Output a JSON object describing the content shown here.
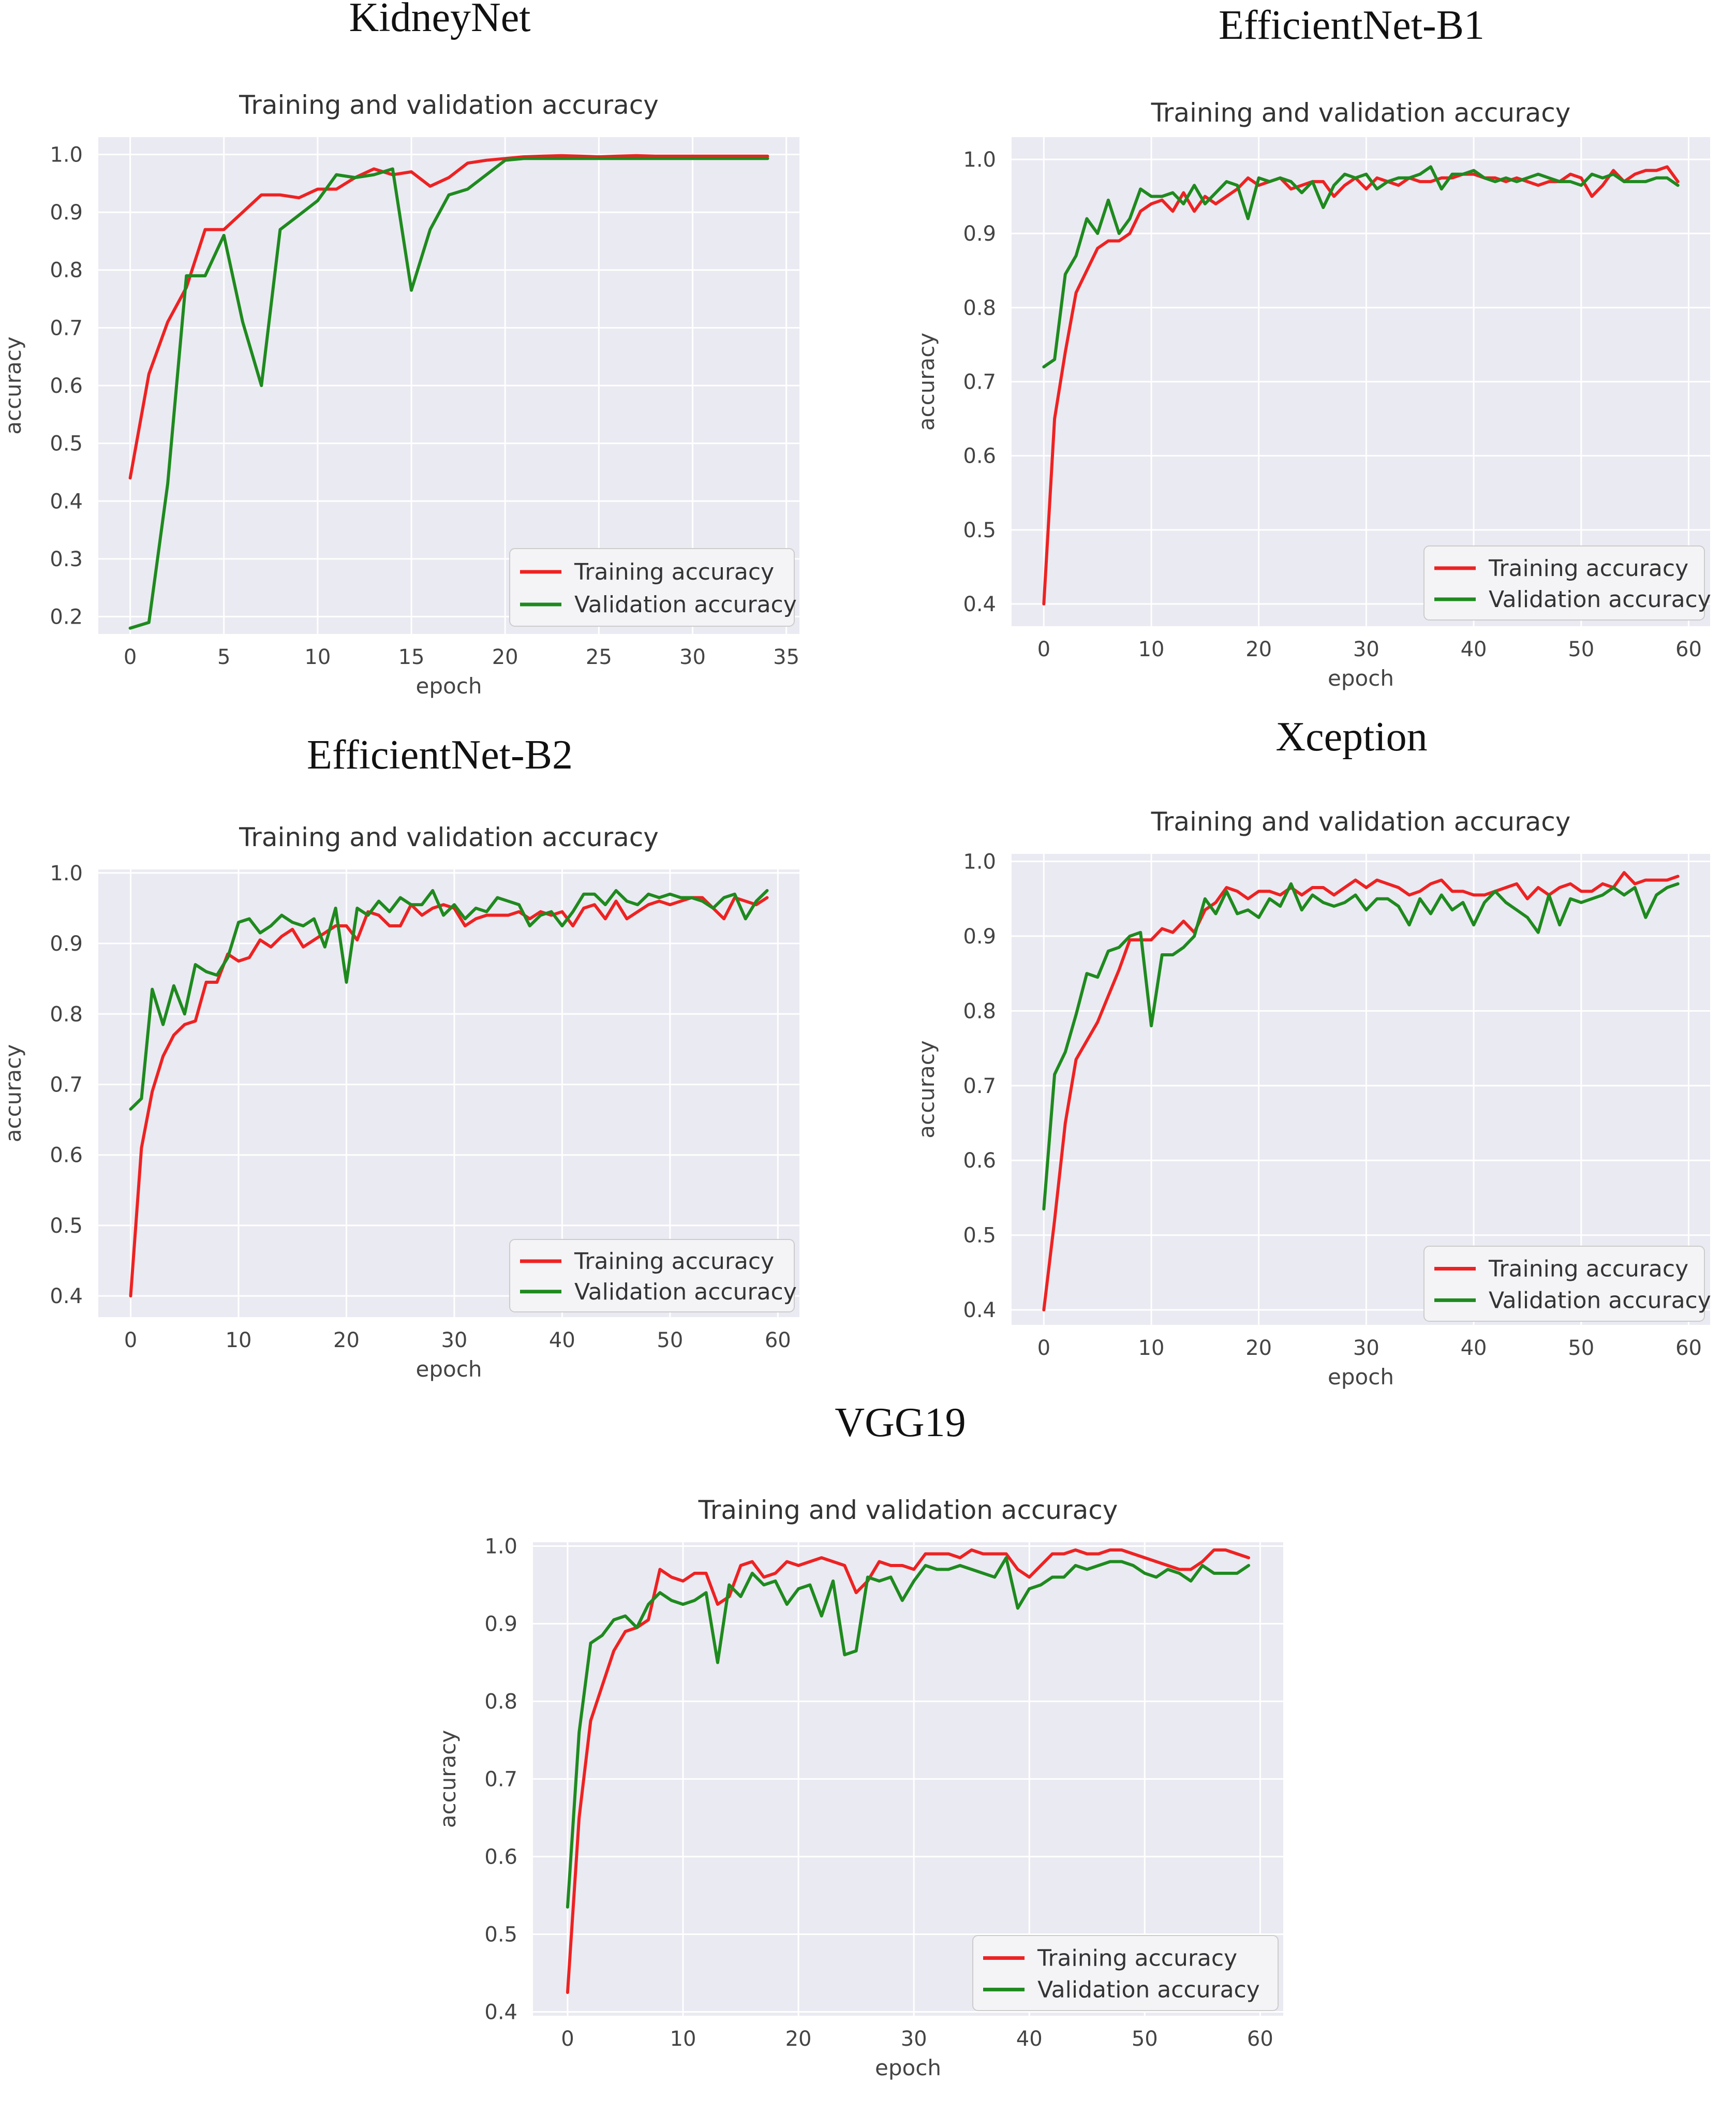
{
  "figure": {
    "background": "#ffffff"
  },
  "colors": {
    "training": "#ee2222",
    "validation": "#1e8a1e",
    "plot_bg": "#eaeaf2"
  },
  "chart_data": [
    {
      "type": "line",
      "model_name": "KidneyNet",
      "title": "Training and validation accuracy",
      "xlabel": "epoch",
      "ylabel": "accuracy",
      "xlim": [
        -1.7,
        35.7
      ],
      "ylim": [
        0.17,
        1.03
      ],
      "xticks": [
        0,
        5,
        10,
        15,
        20,
        25,
        30,
        35
      ],
      "yticks": [
        0.2,
        0.3,
        0.4,
        0.5,
        0.6,
        0.7,
        0.8,
        0.9,
        1.0
      ],
      "ytick_labels": [
        "0.2",
        "0.3",
        "0.4",
        "0.5",
        "0.6",
        "0.7",
        "0.8",
        "0.9",
        "1.0"
      ],
      "legend_position": "bottom-right",
      "series": [
        {
          "name": "Training accuracy",
          "color": "#ee2222",
          "values": [
            0.44,
            0.62,
            0.71,
            0.77,
            0.87,
            0.87,
            0.9,
            0.93,
            0.93,
            0.925,
            0.94,
            0.94,
            0.96,
            0.975,
            0.965,
            0.97,
            0.945,
            0.96,
            0.985,
            0.99,
            0.993,
            0.996,
            0.997,
            0.998,
            0.997,
            0.996,
            0.997,
            0.998,
            0.997,
            0.997,
            0.997,
            0.997,
            0.997,
            0.997,
            0.997
          ]
        },
        {
          "name": "Validation accuracy",
          "color": "#1e8a1e",
          "values": [
            0.18,
            0.19,
            0.43,
            0.79,
            0.79,
            0.86,
            0.71,
            0.6,
            0.87,
            0.895,
            0.92,
            0.965,
            0.96,
            0.965,
            0.975,
            0.765,
            0.87,
            0.93,
            0.94,
            0.965,
            0.99,
            0.993,
            0.993,
            0.993,
            0.993,
            0.993,
            0.993,
            0.993,
            0.993,
            0.993,
            0.993,
            0.993,
            0.993,
            0.993,
            0.993
          ]
        }
      ]
    },
    {
      "type": "line",
      "model_name": "EfficientNet-B1",
      "title": "Training and validation accuracy",
      "xlabel": "epoch",
      "ylabel": "accuracy",
      "xlim": [
        -3,
        62
      ],
      "ylim": [
        0.37,
        1.03
      ],
      "xticks": [
        0,
        10,
        20,
        30,
        40,
        50,
        60
      ],
      "yticks": [
        0.4,
        0.5,
        0.6,
        0.7,
        0.8,
        0.9,
        1.0
      ],
      "ytick_labels": [
        "0.4",
        "0.5",
        "0.6",
        "0.7",
        "0.8",
        "0.9",
        "1.0"
      ],
      "legend_position": "bottom-right",
      "series": [
        {
          "name": "Training accuracy",
          "color": "#ee2222",
          "values": [
            0.4,
            0.65,
            0.74,
            0.82,
            0.85,
            0.88,
            0.89,
            0.89,
            0.9,
            0.93,
            0.94,
            0.945,
            0.93,
            0.955,
            0.93,
            0.95,
            0.94,
            0.95,
            0.96,
            0.975,
            0.965,
            0.97,
            0.975,
            0.96,
            0.965,
            0.97,
            0.97,
            0.95,
            0.965,
            0.975,
            0.96,
            0.975,
            0.97,
            0.965,
            0.975,
            0.97,
            0.97,
            0.975,
            0.975,
            0.98,
            0.98,
            0.975,
            0.975,
            0.97,
            0.975,
            0.97,
            0.965,
            0.97,
            0.97,
            0.98,
            0.975,
            0.95,
            0.965,
            0.985,
            0.97,
            0.98,
            0.985,
            0.985,
            0.99,
            0.97
          ]
        },
        {
          "name": "Validation accuracy",
          "color": "#1e8a1e",
          "values": [
            0.72,
            0.73,
            0.845,
            0.87,
            0.92,
            0.9,
            0.945,
            0.9,
            0.92,
            0.96,
            0.95,
            0.95,
            0.955,
            0.94,
            0.965,
            0.94,
            0.955,
            0.97,
            0.965,
            0.92,
            0.975,
            0.97,
            0.975,
            0.97,
            0.955,
            0.97,
            0.935,
            0.965,
            0.98,
            0.975,
            0.98,
            0.96,
            0.97,
            0.975,
            0.975,
            0.98,
            0.99,
            0.96,
            0.98,
            0.98,
            0.985,
            0.975,
            0.97,
            0.975,
            0.97,
            0.975,
            0.98,
            0.975,
            0.97,
            0.97,
            0.965,
            0.98,
            0.975,
            0.98,
            0.97,
            0.97,
            0.97,
            0.975,
            0.975,
            0.965
          ]
        }
      ]
    },
    {
      "type": "line",
      "model_name": "EfficientNet-B2",
      "title": "Training and validation accuracy",
      "xlabel": "epoch",
      "ylabel": "accuracy",
      "xlim": [
        -3,
        62
      ],
      "ylim": [
        0.37,
        1.005
      ],
      "xticks": [
        0,
        10,
        20,
        30,
        40,
        50,
        60
      ],
      "yticks": [
        0.4,
        0.5,
        0.6,
        0.7,
        0.8,
        0.9,
        1.0
      ],
      "ytick_labels": [
        "0.4",
        "0.5",
        "0.6",
        "0.7",
        "0.8",
        "0.9",
        "1.0"
      ],
      "legend_position": "bottom-right",
      "series": [
        {
          "name": "Training accuracy",
          "color": "#ee2222",
          "values": [
            0.4,
            0.61,
            0.69,
            0.74,
            0.77,
            0.785,
            0.79,
            0.845,
            0.845,
            0.885,
            0.875,
            0.88,
            0.905,
            0.895,
            0.91,
            0.92,
            0.895,
            0.905,
            0.915,
            0.925,
            0.925,
            0.905,
            0.945,
            0.94,
            0.925,
            0.925,
            0.955,
            0.94,
            0.95,
            0.955,
            0.95,
            0.925,
            0.935,
            0.94,
            0.94,
            0.94,
            0.945,
            0.935,
            0.945,
            0.94,
            0.945,
            0.925,
            0.95,
            0.955,
            0.935,
            0.96,
            0.935,
            0.945,
            0.955,
            0.96,
            0.955,
            0.96,
            0.965,
            0.965,
            0.95,
            0.935,
            0.965,
            0.96,
            0.955,
            0.965
          ]
        },
        {
          "name": "Validation accuracy",
          "color": "#1e8a1e",
          "values": [
            0.665,
            0.68,
            0.835,
            0.785,
            0.84,
            0.8,
            0.87,
            0.86,
            0.855,
            0.88,
            0.93,
            0.935,
            0.915,
            0.925,
            0.94,
            0.93,
            0.925,
            0.935,
            0.895,
            0.95,
            0.845,
            0.95,
            0.94,
            0.96,
            0.945,
            0.965,
            0.955,
            0.955,
            0.975,
            0.94,
            0.955,
            0.935,
            0.95,
            0.945,
            0.965,
            0.96,
            0.955,
            0.925,
            0.94,
            0.945,
            0.925,
            0.945,
            0.97,
            0.97,
            0.955,
            0.975,
            0.96,
            0.955,
            0.97,
            0.965,
            0.97,
            0.965,
            0.965,
            0.96,
            0.95,
            0.965,
            0.97,
            0.935,
            0.96,
            0.975
          ]
        }
      ]
    },
    {
      "type": "line",
      "model_name": "Xception",
      "title": "Training and validation accuracy",
      "xlabel": "epoch",
      "ylabel": "accuracy",
      "xlim": [
        -3,
        62
      ],
      "ylim": [
        0.38,
        1.01
      ],
      "xticks": [
        0,
        10,
        20,
        30,
        40,
        50,
        60
      ],
      "yticks": [
        0.4,
        0.5,
        0.6,
        0.7,
        0.8,
        0.9,
        1.0
      ],
      "ytick_labels": [
        "0.4",
        "0.5",
        "0.6",
        "0.7",
        "0.8",
        "0.9",
        "1.0"
      ],
      "legend_position": "bottom-right",
      "series": [
        {
          "name": "Training accuracy",
          "color": "#ee2222",
          "values": [
            0.4,
            0.52,
            0.65,
            0.735,
            0.76,
            0.785,
            0.82,
            0.855,
            0.895,
            0.895,
            0.895,
            0.91,
            0.905,
            0.92,
            0.905,
            0.935,
            0.945,
            0.965,
            0.96,
            0.95,
            0.96,
            0.96,
            0.955,
            0.965,
            0.955,
            0.965,
            0.965,
            0.955,
            0.965,
            0.975,
            0.965,
            0.975,
            0.97,
            0.965,
            0.955,
            0.96,
            0.97,
            0.975,
            0.96,
            0.96,
            0.955,
            0.955,
            0.96,
            0.965,
            0.97,
            0.95,
            0.965,
            0.955,
            0.965,
            0.97,
            0.96,
            0.96,
            0.97,
            0.965,
            0.985,
            0.97,
            0.975,
            0.975,
            0.975,
            0.98
          ]
        },
        {
          "name": "Validation accuracy",
          "color": "#1e8a1e",
          "values": [
            0.535,
            0.715,
            0.745,
            0.795,
            0.85,
            0.845,
            0.88,
            0.885,
            0.9,
            0.905,
            0.78,
            0.875,
            0.875,
            0.885,
            0.9,
            0.95,
            0.93,
            0.96,
            0.93,
            0.935,
            0.925,
            0.95,
            0.94,
            0.97,
            0.935,
            0.955,
            0.945,
            0.94,
            0.945,
            0.955,
            0.935,
            0.95,
            0.95,
            0.94,
            0.915,
            0.95,
            0.93,
            0.955,
            0.935,
            0.945,
            0.915,
            0.945,
            0.96,
            0.945,
            0.935,
            0.925,
            0.905,
            0.955,
            0.915,
            0.95,
            0.945,
            0.95,
            0.955,
            0.965,
            0.955,
            0.965,
            0.925,
            0.955,
            0.965,
            0.97
          ]
        }
      ]
    },
    {
      "type": "line",
      "model_name": "VGG19",
      "title": "Training and validation accuracy",
      "xlabel": "epoch",
      "ylabel": "accuracy",
      "xlim": [
        -3,
        62
      ],
      "ylim": [
        0.395,
        1.005
      ],
      "xticks": [
        0,
        10,
        20,
        30,
        40,
        50,
        60
      ],
      "yticks": [
        0.4,
        0.5,
        0.6,
        0.7,
        0.8,
        0.9,
        1.0
      ],
      "ytick_labels": [
        "0.4",
        "0.5",
        "0.6",
        "0.7",
        "0.8",
        "0.9",
        "1.0"
      ],
      "legend_position": "bottom-right",
      "series": [
        {
          "name": "Training accuracy",
          "color": "#ee2222",
          "values": [
            0.425,
            0.65,
            0.775,
            0.82,
            0.865,
            0.89,
            0.895,
            0.905,
            0.97,
            0.96,
            0.955,
            0.965,
            0.965,
            0.925,
            0.935,
            0.975,
            0.98,
            0.96,
            0.965,
            0.98,
            0.975,
            0.98,
            0.985,
            0.98,
            0.975,
            0.94,
            0.955,
            0.98,
            0.975,
            0.975,
            0.97,
            0.99,
            0.99,
            0.99,
            0.985,
            0.995,
            0.99,
            0.99,
            0.99,
            0.97,
            0.96,
            0.975,
            0.99,
            0.99,
            0.995,
            0.99,
            0.99,
            0.995,
            0.995,
            0.99,
            0.985,
            0.98,
            0.975,
            0.97,
            0.97,
            0.98,
            0.995,
            0.995,
            0.99,
            0.985
          ]
        },
        {
          "name": "Validation accuracy",
          "color": "#1e8a1e",
          "values": [
            0.535,
            0.76,
            0.875,
            0.885,
            0.905,
            0.91,
            0.895,
            0.925,
            0.94,
            0.93,
            0.925,
            0.93,
            0.94,
            0.85,
            0.95,
            0.935,
            0.965,
            0.95,
            0.955,
            0.925,
            0.945,
            0.95,
            0.91,
            0.955,
            0.86,
            0.865,
            0.96,
            0.955,
            0.96,
            0.93,
            0.955,
            0.975,
            0.97,
            0.97,
            0.975,
            0.97,
            0.965,
            0.96,
            0.985,
            0.92,
            0.945,
            0.95,
            0.96,
            0.96,
            0.975,
            0.97,
            0.975,
            0.98,
            0.98,
            0.975,
            0.965,
            0.96,
            0.97,
            0.965,
            0.955,
            0.975,
            0.965,
            0.965,
            0.965,
            0.975
          ]
        }
      ]
    }
  ]
}
